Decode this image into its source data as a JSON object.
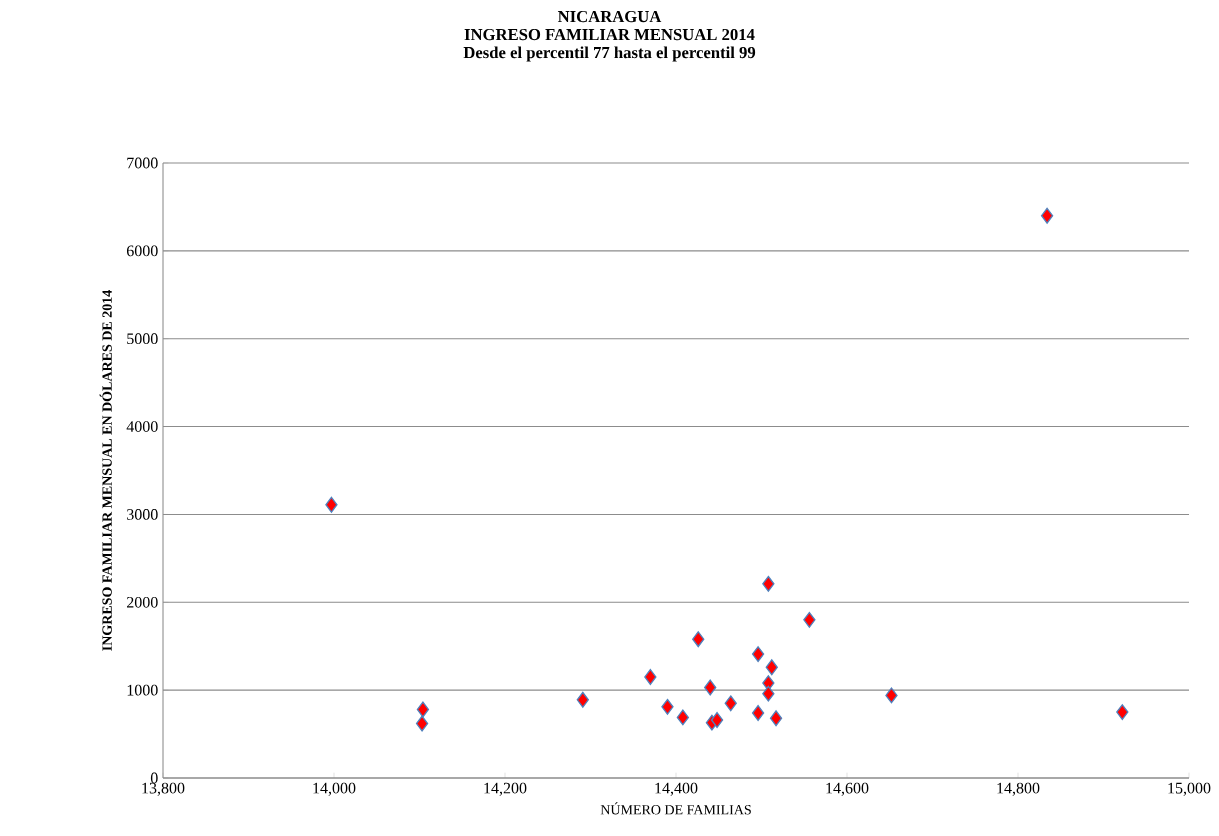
{
  "chart_data": {
    "type": "scatter",
    "title": "NICARAGUA",
    "subtitle": "INGRESO FAMILIAR MENSUAL 2014",
    "annotations": [
      "Desde el percentil 77 hasta el percentil 99"
    ],
    "xlabel": "NÚMERO DE FAMILIAS",
    "ylabel": "INGRESO FAMILIAR MENSUAL EN DÓLARES DE 2014",
    "marker": "diamond",
    "grid": "y",
    "xlim": [
      13800,
      15000
    ],
    "xticks": [
      {
        "value": 13800,
        "label": "13,800"
      },
      {
        "value": 14000,
        "label": "14,000"
      },
      {
        "value": 14200,
        "label": "14,200"
      },
      {
        "value": 14400,
        "label": "14,400"
      },
      {
        "value": 14600,
        "label": "14,600"
      },
      {
        "value": 14800,
        "label": "14,800"
      },
      {
        "value": 15000,
        "label": "15,000"
      }
    ],
    "ylim": [
      0,
      7000
    ],
    "yticks": [
      0,
      1000,
      2000,
      3000,
      4000,
      5000,
      6000,
      7000
    ],
    "series": [
      {
        "color": "#ff0000",
        "x": [
          13997,
          14103,
          14104,
          14291,
          14370,
          14390,
          14408,
          14426,
          14440,
          14442,
          14448,
          14464,
          14496,
          14496,
          14508,
          14508,
          14508,
          14512,
          14517,
          14556,
          14652,
          14834,
          14922
        ],
        "values": [
          3110,
          620,
          780,
          890,
          1150,
          810,
          690,
          1580,
          1030,
          630,
          660,
          850,
          1410,
          740,
          2210,
          1080,
          960,
          1260,
          680,
          1800,
          940,
          6400,
          750
        ]
      }
    ]
  }
}
